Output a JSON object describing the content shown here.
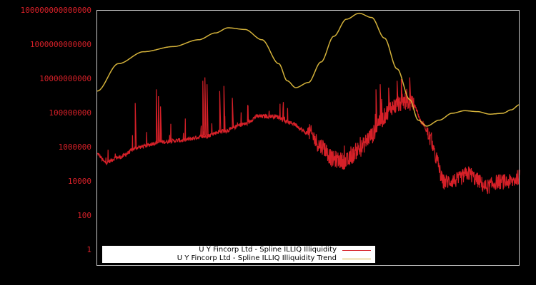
{
  "chart_data": {
    "type": "line",
    "title": "",
    "xlabel": "",
    "ylabel": "",
    "yscale": "log",
    "ylim": [
      0.1,
      1.1e+16
    ],
    "grid": false,
    "legend_position": "lower-left-inside",
    "y_ticks": [
      {
        "label": "10000000000000000",
        "value": 1e+16
      },
      {
        "label": "100000000000000",
        "value": 100000000000000.0
      },
      {
        "label": "1000000000000",
        "value": 1000000000000.0
      },
      {
        "label": "10000000000",
        "value": 10000000000.0
      },
      {
        "label": "100000000",
        "value": 100000000.0
      },
      {
        "label": "1000000",
        "value": 1000000.0
      },
      {
        "label": "10000",
        "value": 10000.0
      },
      {
        "label": "100",
        "value": 100
      },
      {
        "label": "1",
        "value": 1
      }
    ],
    "x_ticks": [],
    "series": [
      {
        "name": "U Y Fincorp Ltd - Spline ILLIQ Illiquidity",
        "color": "#d62028",
        "note": "noisy daily series; baseline log10 values at fractional x positions (0..1)",
        "baseline_log10": [
          [
            0.0,
            5.6
          ],
          [
            0.02,
            5.1
          ],
          [
            0.05,
            5.4
          ],
          [
            0.1,
            6.0
          ],
          [
            0.15,
            6.3
          ],
          [
            0.2,
            6.4
          ],
          [
            0.25,
            6.6
          ],
          [
            0.3,
            6.95
          ],
          [
            0.35,
            7.35
          ],
          [
            0.38,
            7.8
          ],
          [
            0.42,
            7.8
          ],
          [
            0.46,
            7.4
          ],
          [
            0.5,
            6.8
          ],
          [
            0.53,
            6.0
          ],
          [
            0.56,
            5.2
          ],
          [
            0.59,
            5.1
          ],
          [
            0.62,
            5.8
          ],
          [
            0.65,
            6.6
          ],
          [
            0.67,
            7.5
          ],
          [
            0.7,
            8.3
          ],
          [
            0.73,
            8.6
          ],
          [
            0.75,
            8.4
          ],
          [
            0.77,
            7.4
          ],
          [
            0.79,
            6.4
          ],
          [
            0.8,
            5.4
          ],
          [
            0.82,
            3.9
          ],
          [
            0.85,
            4.0
          ],
          [
            0.88,
            4.4
          ],
          [
            0.9,
            4.0
          ],
          [
            0.92,
            3.6
          ],
          [
            0.95,
            3.9
          ],
          [
            0.98,
            3.9
          ],
          [
            1.0,
            4.2
          ]
        ],
        "spikes_log10": [
          [
            0.09,
            8.6
          ],
          [
            0.14,
            9.4
          ],
          [
            0.145,
            9.0
          ],
          [
            0.15,
            8.4
          ],
          [
            0.25,
            9.9
          ],
          [
            0.255,
            10.1
          ],
          [
            0.26,
            9.7
          ],
          [
            0.29,
            9.3
          ],
          [
            0.3,
            9.6
          ],
          [
            0.32,
            8.9
          ],
          [
            0.66,
            9.4
          ],
          [
            0.67,
            9.7
          ],
          [
            0.69,
            9.5
          ],
          [
            0.71,
            9.9
          ],
          [
            0.72,
            10.0
          ],
          [
            0.74,
            10.1
          ]
        ],
        "noise_log10": 0.35
      },
      {
        "name": "U Y Fincorp Ltd - Spline ILLIQ Illiquidity Trend",
        "color": "#d4b23a",
        "values_log10": [
          [
            0.0,
            9.3
          ],
          [
            0.05,
            10.9
          ],
          [
            0.11,
            11.6
          ],
          [
            0.18,
            11.9
          ],
          [
            0.24,
            12.3
          ],
          [
            0.28,
            12.7
          ],
          [
            0.31,
            13.0
          ],
          [
            0.35,
            12.9
          ],
          [
            0.39,
            12.3
          ],
          [
            0.43,
            10.9
          ],
          [
            0.45,
            9.9
          ],
          [
            0.47,
            9.5
          ],
          [
            0.5,
            9.8
          ],
          [
            0.53,
            11.0
          ],
          [
            0.56,
            12.5
          ],
          [
            0.59,
            13.5
          ],
          [
            0.62,
            13.85
          ],
          [
            0.65,
            13.6
          ],
          [
            0.68,
            12.4
          ],
          [
            0.71,
            10.6
          ],
          [
            0.74,
            8.8
          ],
          [
            0.76,
            7.6
          ],
          [
            0.78,
            7.25
          ],
          [
            0.81,
            7.6
          ],
          [
            0.84,
            8.0
          ],
          [
            0.87,
            8.15
          ],
          [
            0.9,
            8.1
          ],
          [
            0.93,
            7.95
          ],
          [
            0.96,
            8.0
          ],
          [
            0.98,
            8.2
          ],
          [
            1.0,
            8.5
          ]
        ]
      }
    ]
  },
  "legend": {
    "items": [
      {
        "label": "U Y Fincorp Ltd - Spline ILLIQ Illiquidity",
        "color": "#d62028"
      },
      {
        "label": "U Y Fincorp Ltd - Spline ILLIQ Illiquidity Trend",
        "color": "#d4b23a"
      }
    ]
  }
}
